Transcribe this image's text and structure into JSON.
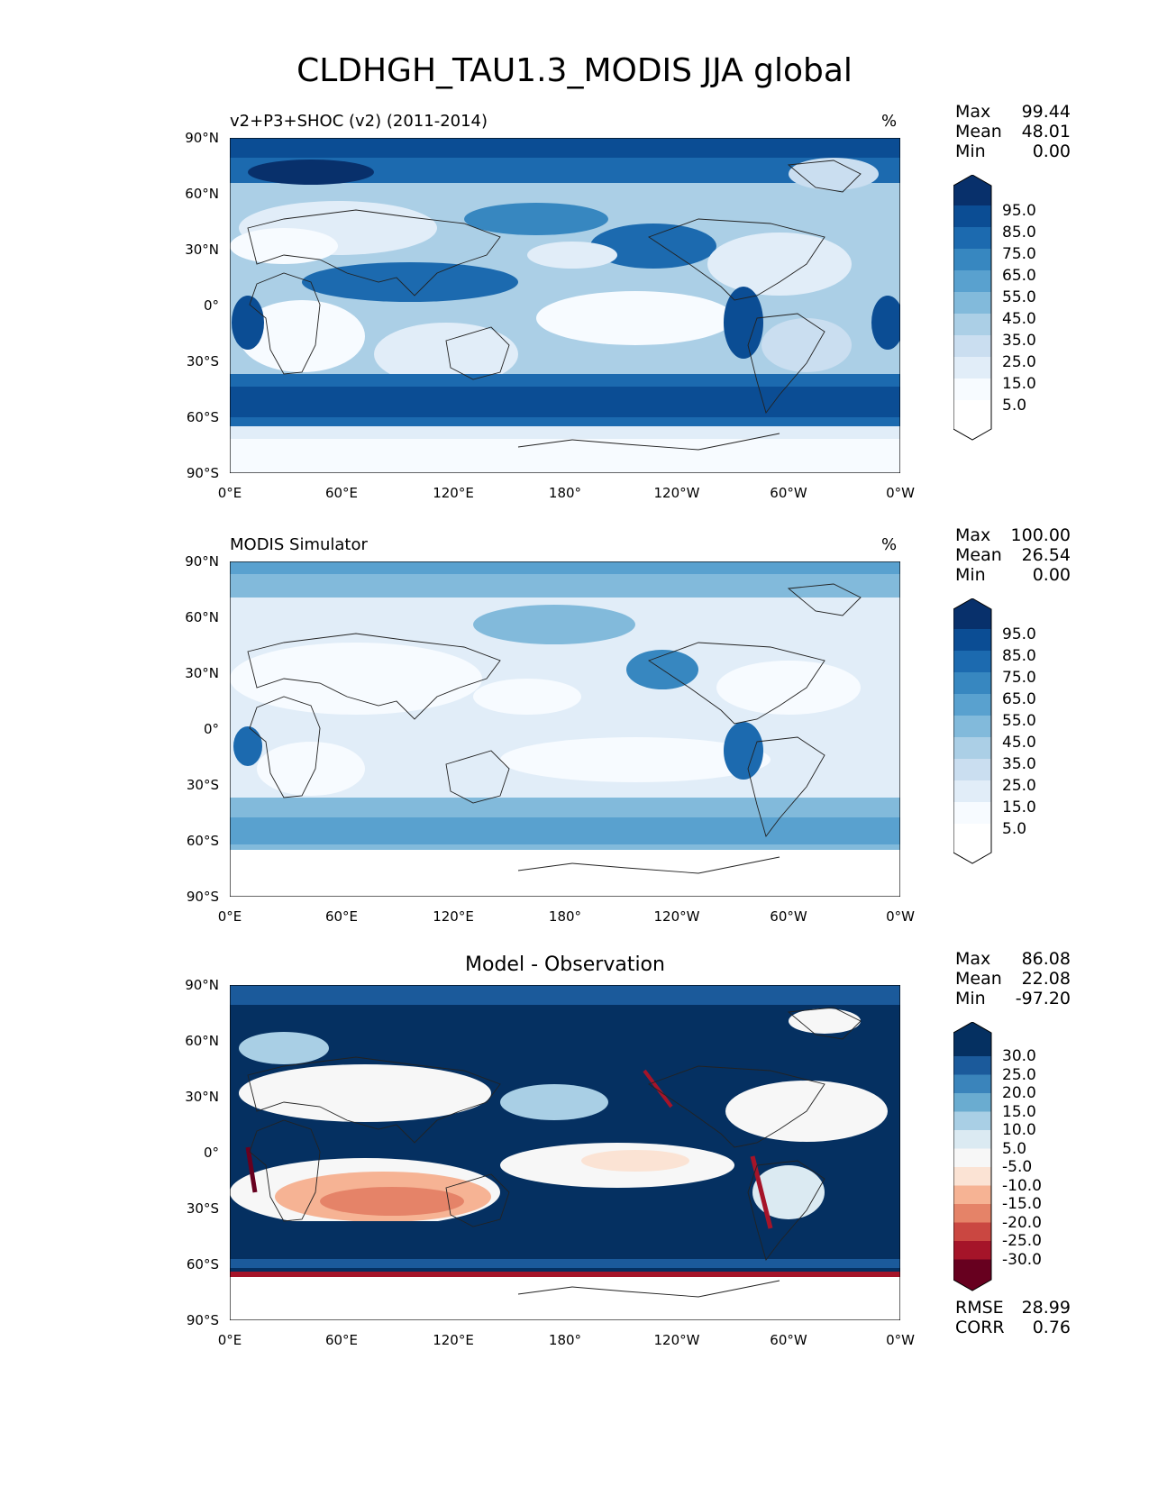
{
  "figure": {
    "title": "CLDHGH_TAU1.3_MODIS JJA global"
  },
  "axes": {
    "lat_labels": [
      "90°N",
      "60°N",
      "30°N",
      "0°",
      "30°S",
      "60°S",
      "90°S"
    ],
    "lon_labels": [
      "0°E",
      "60°E",
      "120°E",
      "180°",
      "120°W",
      "60°W",
      "0°W"
    ]
  },
  "panels": [
    {
      "title": "v2+P3+SHOC (v2) (2011-2014)",
      "unit": "%",
      "stats": {
        "max_label": "Max",
        "max": "99.44",
        "mean_label": "Mean",
        "mean": "48.01",
        "min_label": "Min",
        "min": "0.00"
      },
      "colorbar_labels": [
        "95.0",
        "85.0",
        "75.0",
        "65.0",
        "55.0",
        "45.0",
        "35.0",
        "25.0",
        "15.0",
        "5.0"
      ]
    },
    {
      "title": "MODIS Simulator",
      "unit": "%",
      "stats": {
        "max_label": "Max",
        "max": "100.00",
        "mean_label": "Mean",
        "mean": "26.54",
        "min_label": "Min",
        "min": "0.00"
      },
      "colorbar_labels": [
        "95.0",
        "85.0",
        "75.0",
        "65.0",
        "55.0",
        "45.0",
        "35.0",
        "25.0",
        "15.0",
        "5.0"
      ]
    },
    {
      "title": "Model - Observation",
      "stats": {
        "max_label": "Max",
        "max": "86.08",
        "mean_label": "Mean",
        "mean": "22.08",
        "min_label": "Min",
        "min": "-97.20"
      },
      "colorbar_labels": [
        "30.0",
        "25.0",
        "20.0",
        "15.0",
        "10.0",
        "5.0",
        "-5.0",
        "-10.0",
        "-15.0",
        "-20.0",
        "-25.0",
        "-30.0"
      ],
      "metrics": {
        "rmse_label": "RMSE",
        "rmse": "28.99",
        "corr_label": "CORR",
        "corr": "0.76"
      }
    }
  ],
  "colors": {
    "blues": [
      "#f7fbff",
      "#e1edf8",
      "#cadef0",
      "#abcfe6",
      "#82badb",
      "#59a1cf",
      "#3787c0",
      "#1c6aaf",
      "#0b4d94",
      "#08306b"
    ],
    "diverging": [
      "#67001f",
      "#a51429",
      "#ca4741",
      "#e58368",
      "#f6b394",
      "#fbe3d4",
      "#f7f7f7",
      "#dbeaf2",
      "#a9cfe5",
      "#6aacd0",
      "#3a84bb",
      "#1b5a9b",
      "#053061"
    ]
  }
}
